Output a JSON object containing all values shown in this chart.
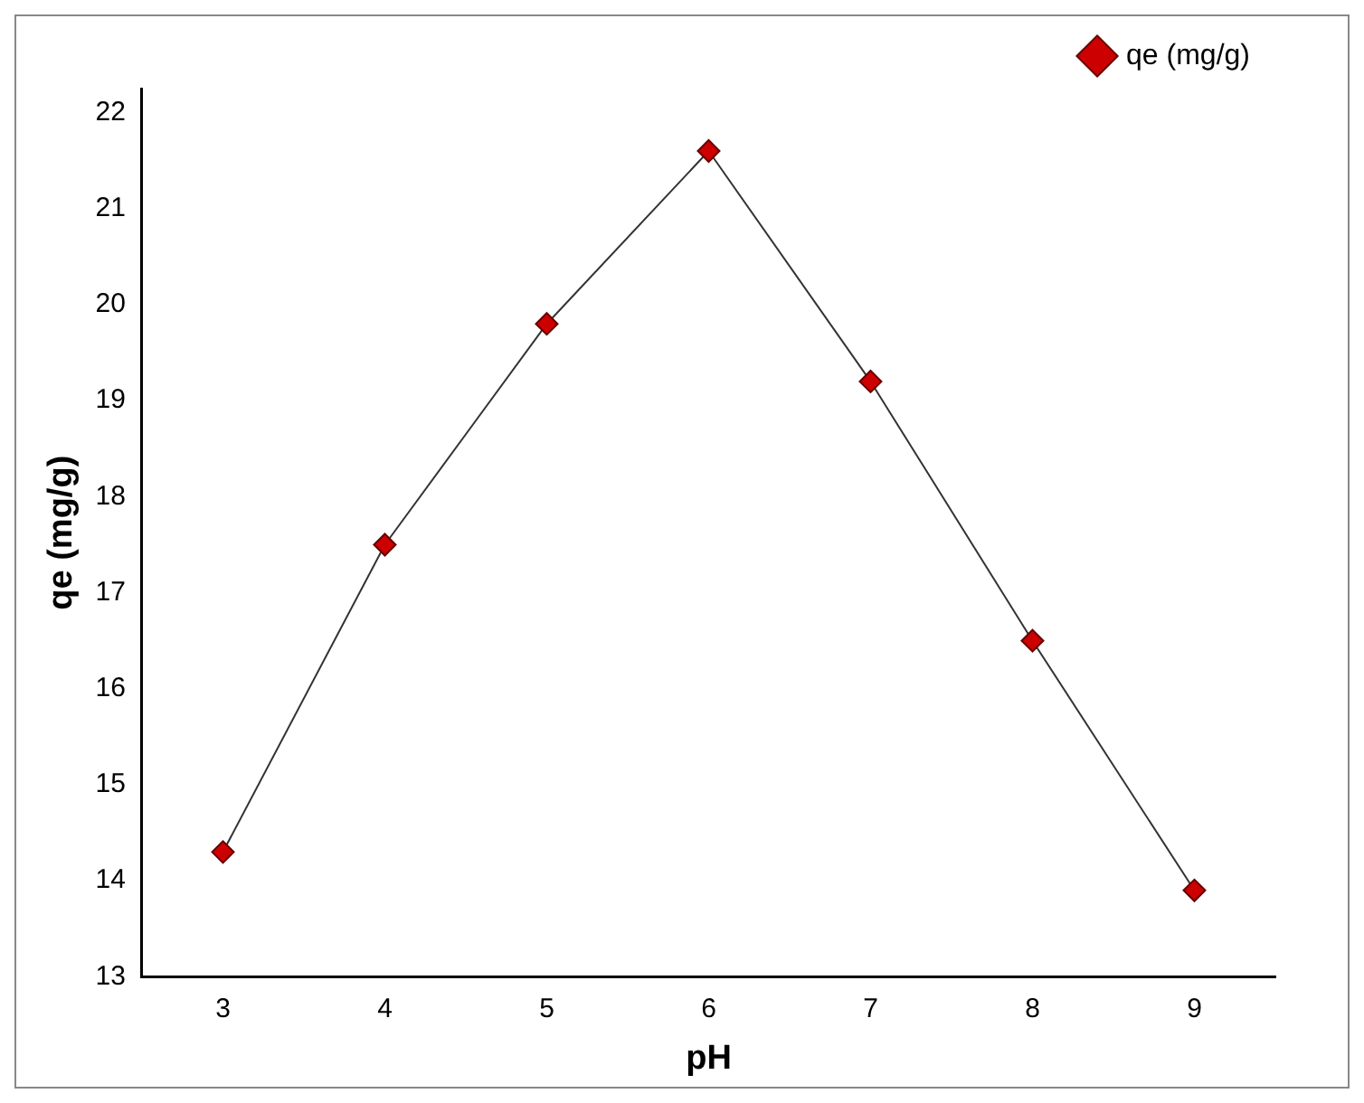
{
  "chart_data": {
    "type": "line",
    "xlabel": "pH",
    "ylabel": "qe (mg/g)",
    "x": [
      3,
      4,
      5,
      6,
      7,
      8,
      9
    ],
    "series": [
      {
        "name": "qe (mg/g)",
        "color": "#cc0000",
        "values": [
          14.3,
          17.5,
          19.8,
          21.6,
          19.2,
          16.5,
          13.9
        ]
      }
    ],
    "xlim": [
      2.5,
      9.5
    ],
    "xticks": [
      3,
      4,
      5,
      6,
      7,
      8,
      9
    ],
    "ylim": [
      13,
      22.25
    ],
    "yticks": [
      13,
      14,
      15,
      16,
      17,
      18,
      19,
      20,
      21,
      22
    ],
    "marker": "diamond",
    "line_style": "solid",
    "grid": false,
    "legend": "top right"
  }
}
